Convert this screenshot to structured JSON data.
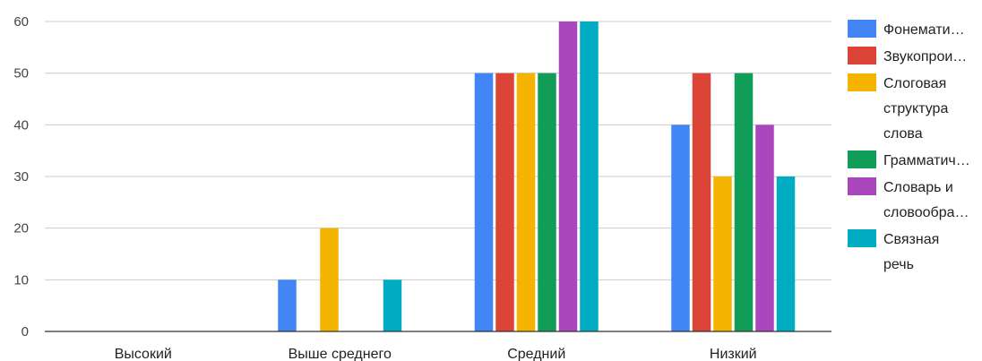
{
  "chart_data": {
    "type": "bar",
    "categories": [
      "Высокий",
      "Выше среднего",
      "Средний",
      "Низкий"
    ],
    "series": [
      {
        "name": "Фонематический слух",
        "legend_lines": [
          "Фонемати…"
        ],
        "color": "#4285f4",
        "values": [
          0,
          10,
          50,
          40
        ]
      },
      {
        "name": "Звукопроизношение",
        "legend_lines": [
          "Звукопрои…"
        ],
        "color": "#db4437",
        "values": [
          0,
          0,
          50,
          50
        ]
      },
      {
        "name": "Слоговая структура слова",
        "legend_lines": [
          "Слоговая",
          "структура",
          "слова"
        ],
        "color": "#f4b400",
        "values": [
          0,
          20,
          50,
          30
        ]
      },
      {
        "name": "Грамматический строй речи",
        "legend_lines": [
          "Грамматич…"
        ],
        "color": "#0f9d58",
        "values": [
          0,
          0,
          50,
          50
        ]
      },
      {
        "name": "Словарь и словообразование",
        "legend_lines": [
          "Словарь и",
          "словообра…"
        ],
        "color": "#ab47bc",
        "values": [
          0,
          0,
          60,
          40
        ]
      },
      {
        "name": "Связная речь",
        "legend_lines": [
          "Связная",
          "речь"
        ],
        "color": "#00acc1",
        "values": [
          0,
          10,
          60,
          30
        ]
      }
    ],
    "yticks": [
      0,
      10,
      20,
      30,
      40,
      50,
      60
    ],
    "ylim": [
      0,
      60
    ],
    "grid": true,
    "legend_position": "right",
    "title": "",
    "xlabel": "",
    "ylabel": ""
  }
}
